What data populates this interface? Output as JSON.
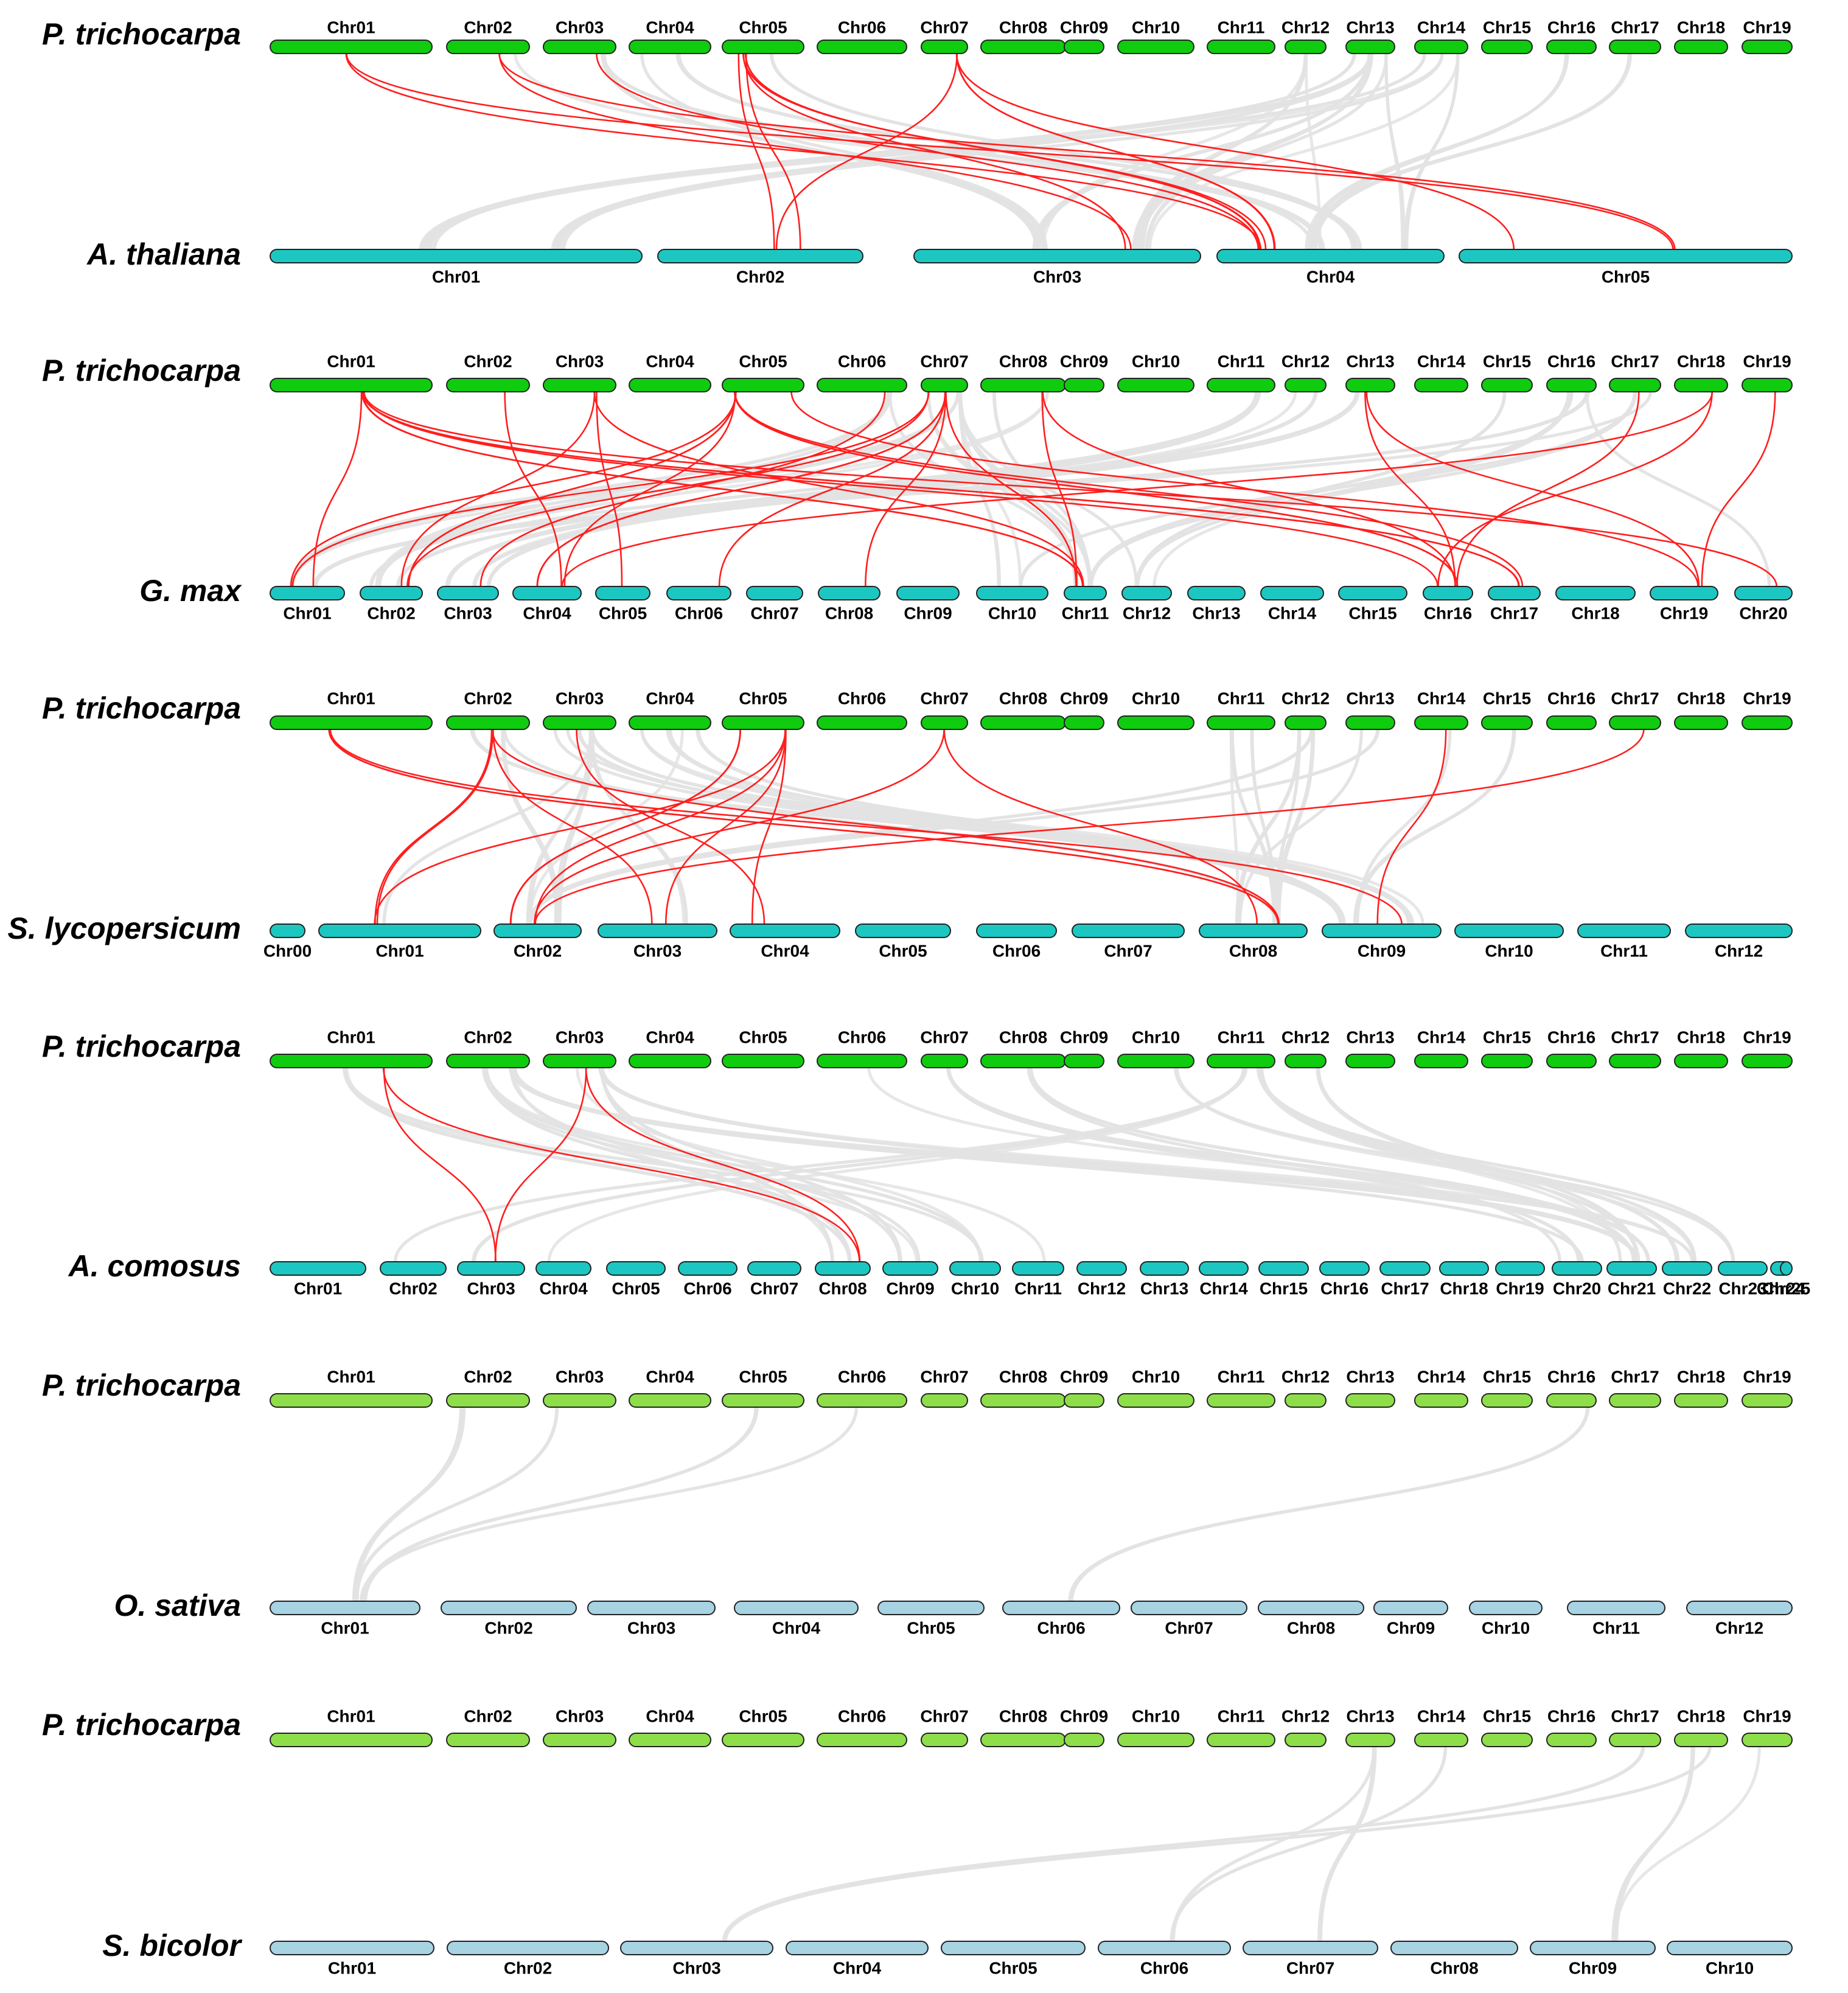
{
  "figure": {
    "panels": [
      {
        "name": "panel-a-thaliana",
        "top_species": "P. trichocarpa",
        "bottom_species": "A. thaliana",
        "top_color": "#0fcc0f",
        "bottom_color": "#1cc7c2",
        "top_chromosomes": [
          "Chr01",
          "Chr02",
          "Chr03",
          "Chr04",
          "Chr05",
          "Chr06",
          "Chr07",
          "Chr08",
          "Chr09",
          "Chr10",
          "Chr11",
          "Chr12",
          "Chr13",
          "Chr14",
          "Chr15",
          "Chr16",
          "Chr17",
          "Chr18",
          "Chr19"
        ],
        "bottom_chromosomes": [
          "Chr01",
          "Chr02",
          "Chr03",
          "Chr04",
          "Chr05"
        ],
        "red_links": [
          [
            "Chr01",
            "Chr04"
          ],
          [
            "Chr01",
            "Chr05"
          ],
          [
            "Chr02",
            "Chr03"
          ],
          [
            "Chr02",
            "Chr05"
          ],
          [
            "Chr03",
            "Chr04"
          ],
          [
            "Chr05",
            "Chr02"
          ],
          [
            "Chr05",
            "Chr04"
          ],
          [
            "Chr05",
            "Chr04"
          ],
          [
            "Chr05",
            "Chr04"
          ],
          [
            "Chr05",
            "Chr03"
          ],
          [
            "Chr07",
            "Chr02"
          ],
          [
            "Chr07",
            "Chr04"
          ],
          [
            "Chr07",
            "Chr04"
          ],
          [
            "Chr07",
            "Chr05"
          ],
          [
            "Chr05",
            "Chr02"
          ]
        ]
      },
      {
        "name": "panel-g-max",
        "top_species": "P. trichocarpa",
        "bottom_species": "G. max",
        "top_color": "#0fcc0f",
        "bottom_color": "#1cc7c2",
        "top_chromosomes": [
          "Chr01",
          "Chr02",
          "Chr03",
          "Chr04",
          "Chr05",
          "Chr06",
          "Chr07",
          "Chr08",
          "Chr09",
          "Chr10",
          "Chr11",
          "Chr12",
          "Chr13",
          "Chr14",
          "Chr15",
          "Chr16",
          "Chr17",
          "Chr18",
          "Chr19"
        ],
        "bottom_chromosomes": [
          "Chr01",
          "Chr02",
          "Chr03",
          "Chr04",
          "Chr05",
          "Chr06",
          "Chr07",
          "Chr08",
          "Chr09",
          "Chr10",
          "Chr11",
          "Chr12",
          "Chr13",
          "Chr14",
          "Chr15",
          "Chr16",
          "Chr17",
          "Chr18",
          "Chr19",
          "Chr20"
        ],
        "red_links": [
          [
            "Chr01",
            "Chr01"
          ],
          [
            "Chr01",
            "Chr11"
          ],
          [
            "Chr01",
            "Chr11"
          ],
          [
            "Chr01",
            "Chr17"
          ],
          [
            "Chr01",
            "Chr17"
          ],
          [
            "Chr01",
            "Chr16"
          ],
          [
            "Chr01",
            "Chr20"
          ],
          [
            "Chr03",
            "Chr05"
          ],
          [
            "Chr03",
            "Chr11"
          ],
          [
            "Chr03",
            "Chr02"
          ],
          [
            "Chr05",
            "Chr01"
          ],
          [
            "Chr05",
            "Chr02"
          ],
          [
            "Chr05",
            "Chr02"
          ],
          [
            "Chr05",
            "Chr04"
          ],
          [
            "Chr05",
            "Chr16"
          ],
          [
            "Chr05",
            "Chr17"
          ],
          [
            "Chr05",
            "Chr16"
          ],
          [
            "Chr05",
            "Chr19"
          ],
          [
            "Chr07",
            "Chr01"
          ],
          [
            "Chr07",
            "Chr02"
          ],
          [
            "Chr07",
            "Chr04"
          ],
          [
            "Chr07",
            "Chr04"
          ],
          [
            "Chr07",
            "Chr08"
          ],
          [
            "Chr07",
            "Chr11"
          ],
          [
            "Chr07",
            "Chr06"
          ],
          [
            "Chr08",
            "Chr11"
          ],
          [
            "Chr08",
            "Chr16"
          ],
          [
            "Chr13",
            "Chr16"
          ],
          [
            "Chr13",
            "Chr19"
          ],
          [
            "Chr17",
            "Chr16"
          ],
          [
            "Chr18",
            "Chr04"
          ],
          [
            "Chr18",
            "Chr16"
          ],
          [
            "Chr19",
            "Chr19"
          ],
          [
            "Chr06",
            "Chr03"
          ],
          [
            "Chr02",
            "Chr04"
          ]
        ]
      },
      {
        "name": "panel-s-lycopersicum",
        "top_species": "P. trichocarpa",
        "bottom_species": "S. lycopersicum",
        "top_color": "#0fcc0f",
        "bottom_color": "#1cc7c2",
        "top_chromosomes": [
          "Chr01",
          "Chr02",
          "Chr03",
          "Chr04",
          "Chr05",
          "Chr06",
          "Chr07",
          "Chr08",
          "Chr09",
          "Chr10",
          "Chr11",
          "Chr12",
          "Chr13",
          "Chr14",
          "Chr15",
          "Chr16",
          "Chr17",
          "Chr18",
          "Chr19"
        ],
        "bottom_chromosomes": [
          "Chr00",
          "Chr01",
          "Chr02",
          "Chr03",
          "Chr04",
          "Chr05",
          "Chr06",
          "Chr07",
          "Chr08",
          "Chr09",
          "Chr10",
          "Chr11",
          "Chr12"
        ],
        "red_links": [
          [
            "Chr01",
            "Chr08"
          ],
          [
            "Chr01",
            "Chr08"
          ],
          [
            "Chr01",
            "Chr09"
          ],
          [
            "Chr02",
            "Chr01"
          ],
          [
            "Chr02",
            "Chr01"
          ],
          [
            "Chr02",
            "Chr03"
          ],
          [
            "Chr02",
            "Chr08"
          ],
          [
            "Chr03",
            "Chr04"
          ],
          [
            "Chr05",
            "Chr02"
          ],
          [
            "Chr05",
            "Chr02"
          ],
          [
            "Chr05",
            "Chr02"
          ],
          [
            "Chr05",
            "Chr01"
          ],
          [
            "Chr05",
            "Chr03"
          ],
          [
            "Chr05",
            "Chr04"
          ],
          [
            "Chr07",
            "Chr02"
          ],
          [
            "Chr07",
            "Chr08"
          ],
          [
            "Chr14",
            "Chr09"
          ],
          [
            "Chr17",
            "Chr02"
          ]
        ]
      },
      {
        "name": "panel-a-comosus",
        "top_species": "P. trichocarpa",
        "bottom_species": "A. comosus",
        "top_color": "#0fcc0f",
        "bottom_color": "#1cc7c2",
        "top_chromosomes": [
          "Chr01",
          "Chr02",
          "Chr03",
          "Chr04",
          "Chr05",
          "Chr06",
          "Chr07",
          "Chr08",
          "Chr09",
          "Chr10",
          "Chr11",
          "Chr12",
          "Chr13",
          "Chr14",
          "Chr15",
          "Chr16",
          "Chr17",
          "Chr18",
          "Chr19"
        ],
        "bottom_chromosomes": [
          "Chr01",
          "Chr02",
          "Chr03",
          "Chr04",
          "Chr05",
          "Chr06",
          "Chr07",
          "Chr08",
          "Chr09",
          "Chr10",
          "Chr11",
          "Chr12",
          "Chr13",
          "Chr14",
          "Chr15",
          "Chr16",
          "Chr17",
          "Chr18",
          "Chr19",
          "Chr20",
          "Chr21",
          "Chr22",
          "Chr23",
          "Chr24",
          "Chr25"
        ],
        "red_links": [
          [
            "Chr01",
            "Chr03"
          ],
          [
            "Chr01",
            "Chr08"
          ],
          [
            "Chr03",
            "Chr03"
          ],
          [
            "Chr03",
            "Chr08"
          ]
        ]
      },
      {
        "name": "panel-o-sativa",
        "top_species": "P. trichocarpa",
        "bottom_species": "O. sativa",
        "top_color": "#8ede4a",
        "bottom_color": "#a7d3e3",
        "top_chromosomes": [
          "Chr01",
          "Chr02",
          "Chr03",
          "Chr04",
          "Chr05",
          "Chr06",
          "Chr07",
          "Chr08",
          "Chr09",
          "Chr10",
          "Chr11",
          "Chr12",
          "Chr13",
          "Chr14",
          "Chr15",
          "Chr16",
          "Chr17",
          "Chr18",
          "Chr19"
        ],
        "bottom_chromosomes": [
          "Chr01",
          "Chr02",
          "Chr03",
          "Chr04",
          "Chr05",
          "Chr06",
          "Chr07",
          "Chr08",
          "Chr09",
          "Chr10",
          "Chr11",
          "Chr12"
        ],
        "red_links": []
      },
      {
        "name": "panel-s-bicolor",
        "top_species": "P. trichocarpa",
        "bottom_species": "S. bicolor",
        "top_color": "#8ede4a",
        "bottom_color": "#a7d3e3",
        "top_chromosomes": [
          "Chr01",
          "Chr02",
          "Chr03",
          "Chr04",
          "Chr05",
          "Chr06",
          "Chr07",
          "Chr08",
          "Chr09",
          "Chr10",
          "Chr11",
          "Chr12",
          "Chr13",
          "Chr14",
          "Chr15",
          "Chr16",
          "Chr17",
          "Chr18",
          "Chr19"
        ],
        "bottom_chromosomes": [
          "Chr01",
          "Chr02",
          "Chr03",
          "Chr04",
          "Chr05",
          "Chr06",
          "Chr07",
          "Chr08",
          "Chr09",
          "Chr10"
        ],
        "red_links": []
      }
    ],
    "colors": {
      "highlight_link": "#ff1e1e",
      "background_link": "#e3e3e3"
    }
  }
}
